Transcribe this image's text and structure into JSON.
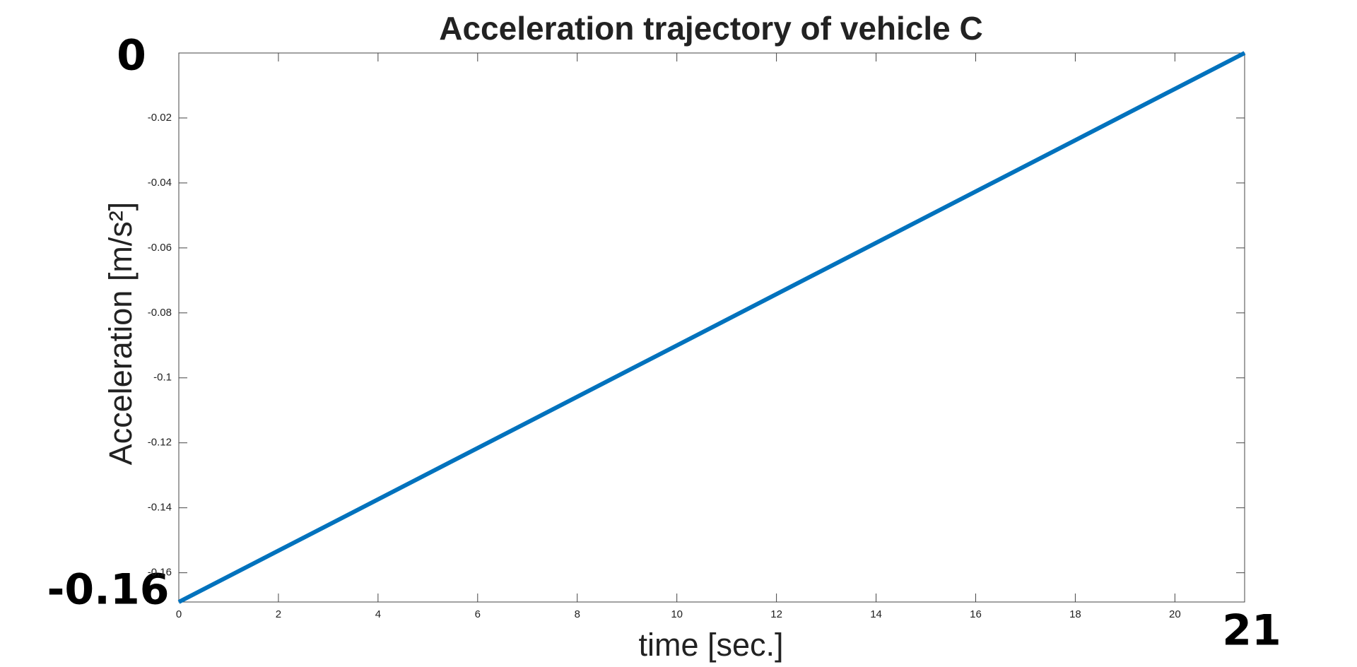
{
  "chart_data": {
    "type": "line",
    "title": "Acceleration trajectory of vehicle C",
    "x_label": "time [sec.]",
    "y_label": "Acceleration  [m/s²]",
    "x": [
      0,
      21.4
    ],
    "values": [
      -0.169,
      0
    ],
    "color": "#0072bd",
    "xlim": [
      0,
      21.4
    ],
    "ylim": [
      -0.169,
      0
    ],
    "xticks": [
      0,
      2,
      4,
      6,
      8,
      10,
      12,
      14,
      16,
      18,
      20
    ],
    "yticks": [
      -0.16,
      -0.14,
      -0.12,
      -0.1,
      -0.08,
      -0.06,
      -0.04,
      -0.02
    ],
    "annotations": [
      "0",
      "-0.16",
      "21"
    ]
  }
}
